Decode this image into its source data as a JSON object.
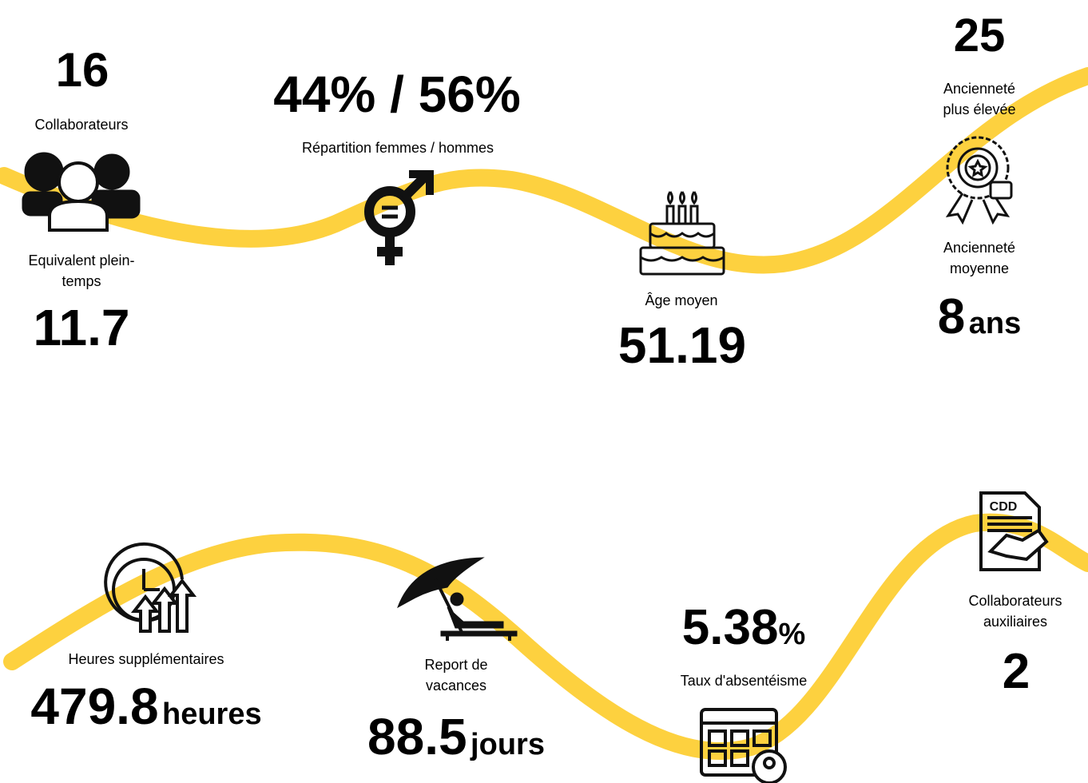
{
  "headcount": {
    "value": 16,
    "label": "Collaborateurs"
  },
  "fte": {
    "label": "Equivalent plein-temps",
    "value": 11.7
  },
  "gender": {
    "value": "44% / 56%",
    "label": "Répartition femmes / hommes"
  },
  "age": {
    "label": "Âge moyen",
    "value": 51.19
  },
  "seniority_max": {
    "value": 25,
    "label": "Ancienneté plus élevée"
  },
  "seniority_avg": {
    "label": "Ancienneté moyenne",
    "value": 8,
    "unit": "ans"
  },
  "overtime": {
    "label": "Heures supplémentaires",
    "value": 479.8,
    "unit": "heures"
  },
  "vacation": {
    "label": "Report de vacances",
    "value": 88.5,
    "unit": "jours"
  },
  "absenteeism": {
    "value": 5.38,
    "unit": "%",
    "label": "Taux d'absentéisme"
  },
  "auxiliary": {
    "label": "Collaborateurs auxiliaires",
    "value": 2
  },
  "cdd_icon": "CDD"
}
